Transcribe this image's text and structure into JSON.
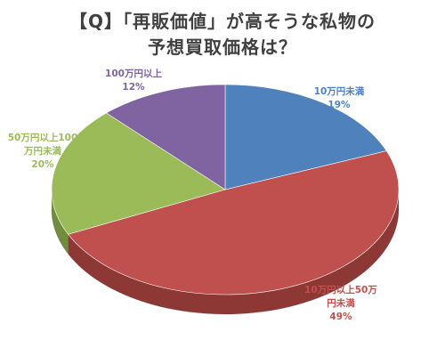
{
  "chart_data": {
    "type": "pie",
    "title_lines": [
      "【Q】「再販価値」が高そうな私物の",
      "予想買取価格は？"
    ],
    "slices": [
      {
        "label_lines": [
          "10万円未満"
        ],
        "percent_label": "19%",
        "value": 19,
        "color": "#4F81BD",
        "side": "#3A6594",
        "text_color": "#4F81BD"
      },
      {
        "label_lines": [
          "10万円以上50万",
          "円未満"
        ],
        "percent_label": "49%",
        "value": 49,
        "color": "#C0504D",
        "side": "#8E3835",
        "text_color": "#C0504D"
      },
      {
        "label_lines": [
          "50万円以上100",
          "万円未満"
        ],
        "percent_label": "20%",
        "value": 20,
        "color": "#9BBB59",
        "side": "#728C3E",
        "text_color": "#9BBB59"
      },
      {
        "label_lines": [
          "100万円以上"
        ],
        "percent_label": "12%",
        "value": 12,
        "color": "#8064A2",
        "side": "#5F4A79",
        "text_color": "#8064A2"
      }
    ]
  }
}
